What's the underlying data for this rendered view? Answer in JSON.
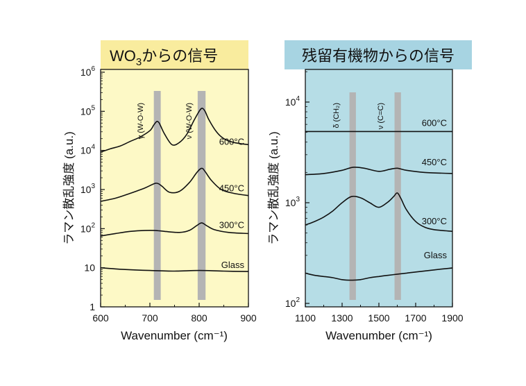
{
  "colors": {
    "left_background": "#fdf9c6",
    "left_title_box": "#f9ec9e",
    "right_background": "#b6dde6",
    "right_title_box": "#a7d4e2",
    "band": "#b4b4b4",
    "curve": "#111111"
  },
  "chart_data": [
    {
      "type": "line",
      "title": "WO₃からの信号",
      "xlabel": "Wavenumber (cm⁻¹)",
      "ylabel": "ラマン散乱強度 (a.u.)",
      "xlim": [
        600,
        900
      ],
      "ylim": [
        1,
        1000000
      ],
      "y_scale": "log",
      "x_ticks": [
        600,
        700,
        800,
        900
      ],
      "x_tick_labels": [
        "600",
        "700",
        "800",
        "900"
      ],
      "y_ticks": [
        1,
        10,
        100,
        1000,
        10000,
        100000,
        1000000
      ],
      "y_tick_labels": [
        {
          "base": "1",
          "exp": ""
        },
        {
          "base": "10",
          "exp": ""
        },
        {
          "base": "10",
          "exp": "2"
        },
        {
          "base": "10",
          "exp": "3"
        },
        {
          "base": "10",
          "exp": "4"
        },
        {
          "base": "10",
          "exp": "5"
        },
        {
          "base": "10",
          "exp": "6"
        }
      ],
      "grid": false,
      "bands": [
        {
          "label": "γ (W-O-W)",
          "x_range": [
            708,
            722
          ]
        },
        {
          "label": "ν (W-O-W)",
          "x_range": [
            797,
            813
          ]
        }
      ],
      "series": [
        {
          "name": "600°C",
          "x": [
            600,
            620,
            640,
            660,
            680,
            700,
            708,
            714,
            718,
            722,
            730,
            745,
            760,
            775,
            790,
            800,
            806,
            812,
            820,
            835,
            850,
            870,
            900
          ],
          "y": [
            9000,
            11000,
            13000,
            17000,
            22000,
            32000,
            45000,
            55000,
            52000,
            42000,
            26000,
            14000,
            16000,
            26000,
            60000,
            100000,
            120000,
            100000,
            60000,
            30000,
            20000,
            16000,
            14000
          ]
        },
        {
          "name": "450°C",
          "x": [
            600,
            630,
            660,
            690,
            705,
            712,
            718,
            725,
            740,
            760,
            780,
            795,
            805,
            812,
            825,
            845,
            870,
            900
          ],
          "y": [
            500,
            600,
            800,
            1100,
            1350,
            1450,
            1400,
            1200,
            850,
            900,
            1500,
            2700,
            3500,
            2900,
            1700,
            1000,
            800,
            700
          ]
        },
        {
          "name": "300°C",
          "x": [
            600,
            630,
            660,
            690,
            710,
            730,
            760,
            780,
            795,
            805,
            815,
            830,
            860,
            900
          ],
          "y": [
            65,
            75,
            85,
            90,
            90,
            85,
            80,
            90,
            120,
            140,
            120,
            95,
            80,
            75
          ]
        },
        {
          "name": "Glass",
          "x": [
            600,
            650,
            700,
            750,
            800,
            850,
            900
          ],
          "y": [
            10,
            9,
            8.5,
            8.2,
            8.5,
            8.2,
            8
          ]
        }
      ]
    },
    {
      "type": "line",
      "title": "残留有機物からの信号",
      "xlabel": "Wavenumber (cm⁻¹)",
      "ylabel": "ラマン散乱強度 (a.u.)",
      "xlim": [
        1100,
        1900
      ],
      "ylim": [
        100,
        20000
      ],
      "y_scale": "log",
      "x_ticks": [
        1100,
        1300,
        1500,
        1700,
        1900
      ],
      "x_tick_labels": [
        "1100",
        "1300",
        "1500",
        "1700",
        "1900"
      ],
      "y_ticks": [
        100,
        1000,
        10000
      ],
      "y_tick_labels": [
        {
          "base": "10",
          "exp": "2"
        },
        {
          "base": "10",
          "exp": "3"
        },
        {
          "base": "10",
          "exp": "4"
        }
      ],
      "grid": false,
      "bands": [
        {
          "label": "δ (CH₂)",
          "x_range": [
            1340,
            1375
          ]
        },
        {
          "label": "ν (C=C)",
          "x_range": [
            1585,
            1620
          ]
        }
      ],
      "series": [
        {
          "name": "600°C",
          "x": [
            1100,
            1300,
            1500,
            1700,
            1900
          ],
          "y": [
            5100,
            5100,
            5100,
            5100,
            5100
          ]
        },
        {
          "name": "450°C",
          "x": [
            1100,
            1200,
            1300,
            1360,
            1420,
            1500,
            1560,
            1600,
            1650,
            1750,
            1900
          ],
          "y": [
            1900,
            1950,
            2100,
            2250,
            2200,
            2050,
            2150,
            2200,
            2100,
            2000,
            1950
          ]
        },
        {
          "name": "300°C",
          "x": [
            1100,
            1150,
            1200,
            1250,
            1300,
            1350,
            1400,
            1450,
            1500,
            1550,
            1580,
            1600,
            1620,
            1650,
            1700,
            1750,
            1800,
            1900
          ],
          "y": [
            600,
            650,
            720,
            830,
            1000,
            1150,
            1120,
            1000,
            900,
            1020,
            1150,
            1250,
            1100,
            850,
            650,
            570,
            540,
            520
          ]
        },
        {
          "name": "Glass",
          "x": [
            1100,
            1150,
            1200,
            1250,
            1300,
            1350,
            1400,
            1450,
            1500,
            1550,
            1600,
            1650,
            1700,
            1750,
            1800,
            1850,
            1900
          ],
          "y": [
            200,
            190,
            185,
            180,
            172,
            170,
            172,
            180,
            185,
            190,
            195,
            200,
            205,
            210,
            215,
            220,
            225
          ]
        }
      ]
    }
  ]
}
